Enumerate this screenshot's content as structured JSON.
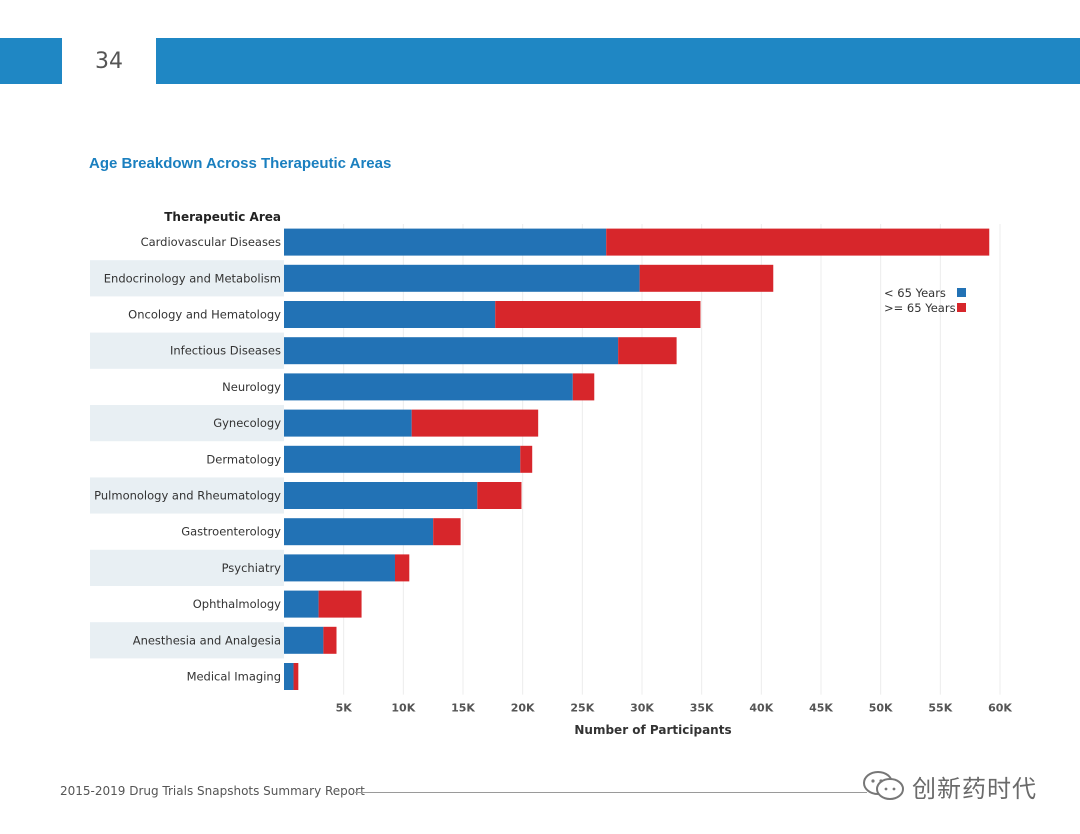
{
  "page": {
    "number": "34",
    "footer": "2015-2019 Drug Trials Snapshots Summary Report",
    "watermark": "创新药时代",
    "colors": {
      "band": "#1f87c4",
      "title": "#1a7fbf",
      "stripe": "#e8eff3"
    }
  },
  "chart_data": {
    "type": "bar",
    "orientation": "horizontal",
    "stacked": true,
    "title": "Age Breakdown Across Therapeutic Areas",
    "category_header": "Therapeutic Area",
    "xlabel": "Number of Participants",
    "ylabel": "Therapeutic Area",
    "xlim": [
      0,
      60000
    ],
    "x_ticks": [
      5000,
      10000,
      15000,
      20000,
      25000,
      30000,
      35000,
      40000,
      45000,
      50000,
      55000,
      60000
    ],
    "x_tick_labels": [
      "5K",
      "10K",
      "15K",
      "20K",
      "25K",
      "30K",
      "35K",
      "40K",
      "45K",
      "50K",
      "55K",
      "60K"
    ],
    "grid": true,
    "legend_position": "top-right",
    "categories": [
      "Cardiovascular Diseases",
      "Endocrinology and Metabolism",
      "Oncology and Hematology",
      "Infectious Diseases",
      "Neurology",
      "Gynecology",
      "Dermatology",
      "Pulmonology and Rheumatology",
      "Gastroenterology",
      "Psychiatry",
      "Ophthalmology",
      "Anesthesia and Analgesia",
      "Medical Imaging"
    ],
    "series": [
      {
        "name": "< 65 Years",
        "color": "#2272b5",
        "values": [
          27000,
          29800,
          17700,
          28000,
          24200,
          10700,
          19800,
          16200,
          12500,
          9300,
          2900,
          3300,
          800
        ]
      },
      {
        "name": ">= 65 Years",
        "color": "#d7262b",
        "values": [
          32100,
          11200,
          17200,
          4900,
          1800,
          10600,
          1000,
          3700,
          2300,
          1200,
          3600,
          1100,
          400
        ]
      }
    ]
  }
}
